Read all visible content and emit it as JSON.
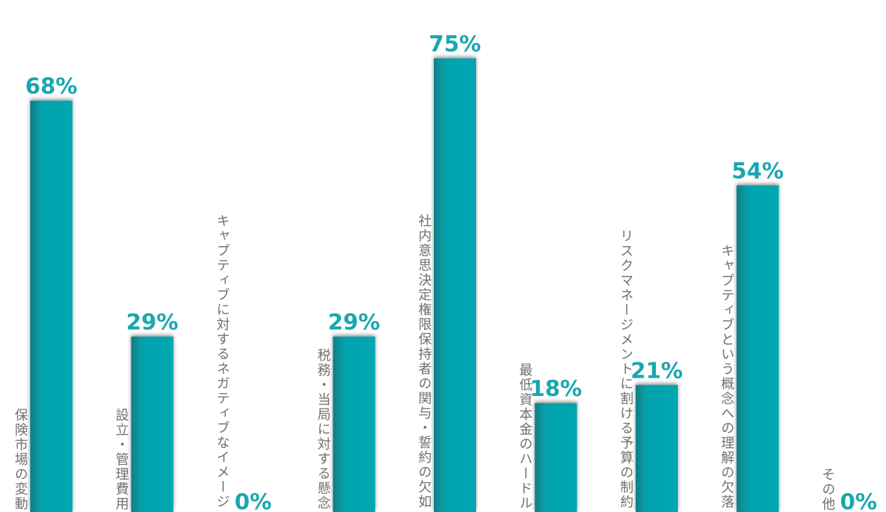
{
  "chart_data": {
    "type": "bar",
    "categories": [
      "保険市場の変動",
      "設立・管理費用",
      "キャプティブに対するネガティブなイメージ",
      "税務・当局に対する懸念",
      "社内意思決定権限保持者の関与・誓約の欠如",
      "最低資本金のハードル",
      "リスクマネージメントに割ける予算の制約",
      "キャプティブという概念への理解の欠落",
      "その他"
    ],
    "values": [
      68,
      29,
      0,
      29,
      75,
      18,
      21,
      54,
      0
    ],
    "value_labels": [
      "68%",
      "29%",
      "0%",
      "29%",
      "75%",
      "18%",
      "21%",
      "54%",
      "0%"
    ],
    "ylim": [
      0,
      100
    ],
    "grid": false,
    "colors": {
      "bar": "#06a6b0",
      "bar_shadow": "#0a6a70",
      "value_text": "#1aa7b0",
      "label_text": "#707070"
    }
  }
}
